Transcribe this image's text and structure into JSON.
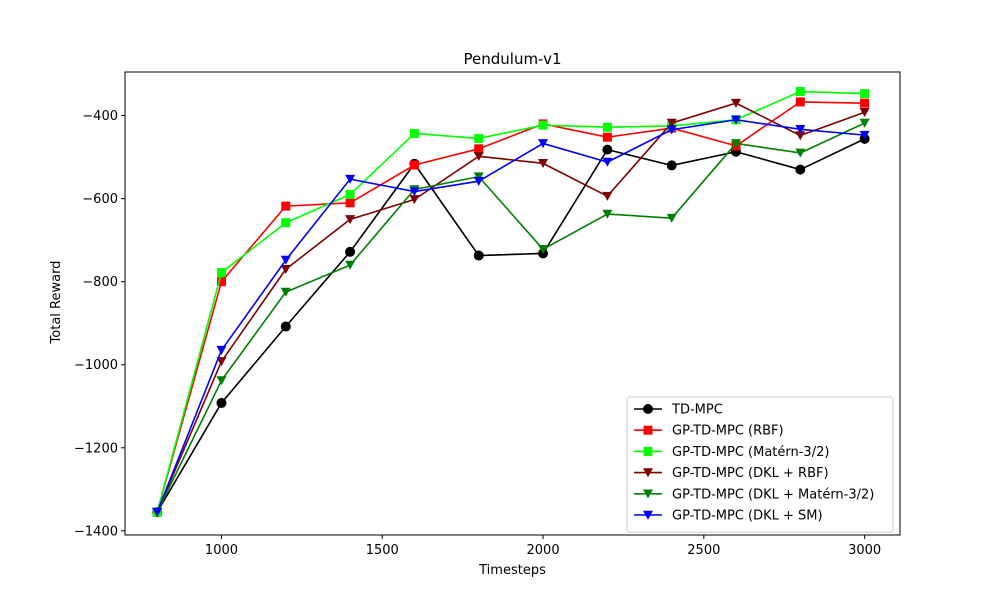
{
  "chart_data": {
    "type": "line",
    "title": "Pendulum-v1",
    "xlabel": "Timesteps",
    "ylabel": "Total Reward",
    "xlim": [
      700,
      3110
    ],
    "ylim": [
      -1410,
      -295
    ],
    "xticks": [
      1000,
      1500,
      2000,
      2500,
      3000
    ],
    "xtick_labels": [
      "1000",
      "1500",
      "2000",
      "2500",
      "3000"
    ],
    "yticks": [
      -1400,
      -1200,
      -1000,
      -800,
      -600,
      -400
    ],
    "ytick_labels": [
      "−1400",
      "−1200",
      "−1000",
      "−800",
      "−600",
      "−400"
    ],
    "grid": false,
    "legend_position": "lower-right",
    "x": [
      800,
      1000,
      1200,
      1400,
      1600,
      1800,
      2000,
      2200,
      2400,
      2600,
      2800,
      3000
    ],
    "series": [
      {
        "name": "TD-MPC",
        "color": "#000000",
        "marker": "circle",
        "values": [
          -1355,
          -1092,
          -908,
          -728,
          -516,
          -737,
          -732,
          -482,
          -520,
          -487,
          -530,
          -456
        ]
      },
      {
        "name": "GP-TD-MPC (RBF)",
        "color": "#ff0000",
        "marker": "square",
        "values": [
          -1355,
          -800,
          -618,
          -610,
          -519,
          -480,
          -420,
          -452,
          -430,
          -473,
          -367,
          -370
        ]
      },
      {
        "name": "GP-TD-MPC (Matérn-3/2)",
        "color": "#00ff00",
        "marker": "square",
        "values": [
          -1355,
          -778,
          -658,
          -590,
          -443,
          -455,
          -423,
          -428,
          -425,
          -410,
          -342,
          -347
        ]
      },
      {
        "name": "GP-TD-MPC (DKL + RBF)",
        "color": "#7f0000",
        "marker": "triangle-down",
        "values": [
          -1355,
          -992,
          -770,
          -650,
          -602,
          -498,
          -515,
          -594,
          -418,
          -370,
          -448,
          -392
        ]
      },
      {
        "name": "GP-TD-MPC (DKL + Matérn-3/2)",
        "color": "#008000",
        "marker": "triangle-down",
        "values": [
          -1355,
          -1038,
          -825,
          -760,
          -578,
          -547,
          -722,
          -637,
          -647,
          -467,
          -490,
          -418
        ]
      },
      {
        "name": "GP-TD-MPC (DKL + SM)",
        "color": "#0000ff",
        "marker": "triangle-down",
        "values": [
          -1355,
          -965,
          -748,
          -553,
          -583,
          -558,
          -467,
          -512,
          -434,
          -410,
          -433,
          -447
        ]
      }
    ]
  }
}
